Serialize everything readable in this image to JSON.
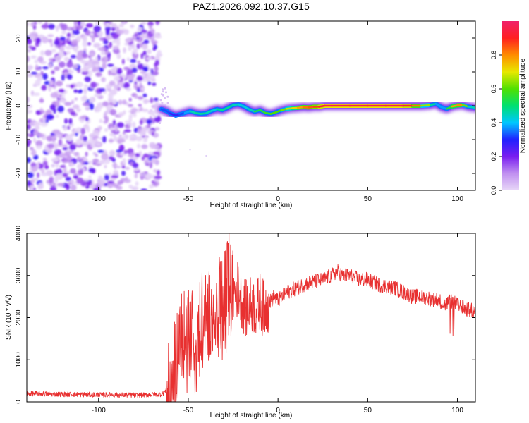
{
  "title": "PAZ1.2026.092.10.37.G15",
  "chart_data": [
    {
      "type": "heatmap",
      "title": "PAZ1.2026.092.10.37.G15",
      "xlabel": "Height of straight line (km)",
      "ylabel": "Frequency (Hz)",
      "xlim": [
        -140,
        110
      ],
      "ylim": [
        -25,
        25
      ],
      "xticks": [
        -100,
        -50,
        0,
        50,
        100
      ],
      "yticks": [
        -20,
        -10,
        0,
        10,
        20
      ],
      "colorbar": {
        "label": "Normalized spectral amplitude",
        "range": [
          0,
          1
        ],
        "ticks": [
          "0.0",
          "0.2",
          "0.4",
          "0.6",
          "0.8"
        ],
        "colors": [
          "#e8d8f8",
          "#c090f0",
          "#7a1ef0",
          "#2020ff",
          "#00c8ff",
          "#00e070",
          "#50e000",
          "#e8e800",
          "#ff8c00",
          "#ff2020",
          "#f0206a"
        ]
      },
      "noise_region_km": [
        -140,
        -66
      ],
      "ridge": {
        "x": [
          -65,
          -62,
          -60,
          -57,
          -55,
          -52,
          -49,
          -46,
          -43,
          -40,
          -37,
          -34,
          -31,
          -28,
          -25,
          -22,
          -19,
          -16,
          -13,
          -10,
          -7,
          -4,
          -1,
          2,
          5,
          8,
          11,
          14,
          17,
          20,
          23,
          26,
          30,
          40,
          50,
          60,
          70,
          75,
          80,
          85,
          88,
          91,
          94,
          97,
          100,
          103,
          106,
          110
        ],
        "y": [
          -1.0,
          -1.6,
          -2.3,
          -2.9,
          -2.6,
          -2.1,
          -1.6,
          -2.1,
          -2.4,
          -2.2,
          -1.5,
          -1.0,
          -1.3,
          -0.6,
          0.2,
          0.4,
          -0.2,
          -1.1,
          -1.7,
          -1.3,
          -2.1,
          -2.4,
          -1.9,
          -1.3,
          -0.9,
          -0.7,
          -0.6,
          -0.4,
          -0.5,
          -0.3,
          -0.3,
          0.0,
          0.0,
          0.0,
          0.0,
          0.0,
          0.0,
          0.0,
          0.0,
          0.2,
          0.6,
          -0.4,
          -0.9,
          -0.2,
          0.1,
          0.2,
          -0.3,
          -0.6
        ],
        "amplitude": [
          0.3,
          0.35,
          0.3,
          0.25,
          0.3,
          0.35,
          0.4,
          0.5,
          0.45,
          0.5,
          0.4,
          0.45,
          0.5,
          0.45,
          0.5,
          0.4,
          0.45,
          0.4,
          0.5,
          0.55,
          0.55,
          0.6,
          0.6,
          0.6,
          0.65,
          0.7,
          0.75,
          0.8,
          0.85,
          0.85,
          0.9,
          0.95,
          0.95,
          0.95,
          0.95,
          0.95,
          0.95,
          0.9,
          0.75,
          0.55,
          0.4,
          0.35,
          0.4,
          0.7,
          0.85,
          0.75,
          0.5,
          0.4
        ]
      }
    },
    {
      "type": "line",
      "xlabel": "Height of straight line (km)",
      "ylabel": "SNR (10 * v/v)",
      "xlim": [
        -140,
        110
      ],
      "ylim": [
        0,
        4000
      ],
      "xticks": [
        -100,
        -50,
        0,
        50,
        100
      ],
      "yticks": [
        0,
        1000,
        2000,
        3000,
        4000
      ],
      "color": "#e83030",
      "series": [
        {
          "name": "SNR",
          "x": [
            -140,
            -120,
            -100,
            -80,
            -65,
            -60,
            -58,
            -56,
            -54,
            -52,
            -50,
            -48,
            -46,
            -44,
            -42,
            -40,
            -38,
            -36,
            -34,
            -32,
            -30,
            -28,
            -27,
            -26,
            -24,
            -22,
            -20,
            -18,
            -16,
            -14,
            -12,
            -10,
            -8,
            -6,
            -4,
            -2,
            0,
            5,
            10,
            15,
            20,
            25,
            30,
            33,
            36,
            40,
            45,
            50,
            55,
            60,
            65,
            70,
            75,
            80,
            85,
            90,
            93,
            96,
            100,
            105,
            110
          ],
          "y": [
            200,
            180,
            170,
            160,
            180,
            320,
            700,
            1300,
            1800,
            1500,
            1600,
            1700,
            1500,
            1900,
            2200,
            2000,
            2100,
            2300,
            2400,
            2300,
            2500,
            2600,
            2900,
            2500,
            2600,
            2700,
            2400,
            2200,
            2300,
            2300,
            2200,
            2400,
            2200,
            2300,
            2400,
            2500,
            2400,
            2600,
            2700,
            2800,
            2850,
            2900,
            3000,
            3100,
            3000,
            3000,
            2900,
            2900,
            2800,
            2750,
            2700,
            2600,
            2500,
            2500,
            2450,
            2400,
            2300,
            2400,
            2300,
            2200,
            2150
          ]
        }
      ],
      "noise_amplitude": 500
    }
  ]
}
